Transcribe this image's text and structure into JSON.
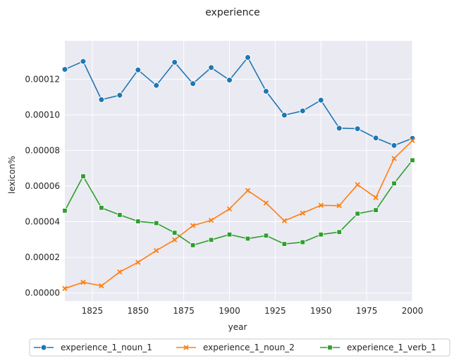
{
  "chart_data": {
    "type": "line",
    "title": "experience",
    "xlabel": "year",
    "ylabel": "lexicon%",
    "xlim": [
      1810,
      2000
    ],
    "ylim": [
      -4.5e-06,
      0.0001415
    ],
    "xticks": [
      1825,
      1850,
      1875,
      1900,
      1925,
      1950,
      1975,
      2000
    ],
    "xtick_labels": [
      "1825",
      "1850",
      "1875",
      "1900",
      "1925",
      "1950",
      "1975",
      "2000"
    ],
    "yticks": [
      0,
      2e-05,
      4e-05,
      6e-05,
      8e-05,
      0.0001,
      0.00012
    ],
    "ytick_labels": [
      "0.00000",
      "0.00002",
      "0.00004",
      "0.00006",
      "0.00008",
      "0.00010",
      "0.00012"
    ],
    "grid": true,
    "legend_position": "bottom-center",
    "x": [
      1810,
      1820,
      1830,
      1840,
      1850,
      1860,
      1870,
      1880,
      1890,
      1900,
      1910,
      1920,
      1930,
      1940,
      1950,
      1960,
      1970,
      1980,
      1990,
      2000
    ],
    "series": [
      {
        "name": "experience_1_noun_1",
        "color": "#1f77b4",
        "marker": "circle",
        "values": [
          0.0001255,
          0.00013,
          0.0001085,
          0.000111,
          0.0001252,
          0.0001165,
          0.0001295,
          0.0001175,
          0.0001265,
          0.0001195,
          0.0001322,
          0.0001132,
          9.98e-05,
          0.0001022,
          0.0001082,
          9.25e-05,
          9.22e-05,
          8.7e-05,
          8.28e-05,
          8.68e-05
        ]
      },
      {
        "name": "experience_1_noun_2",
        "color": "#ff7f0e",
        "marker": "x",
        "values": [
          2.5e-06,
          6e-06,
          4e-06,
          1.18e-05,
          1.72e-05,
          2.38e-05,
          2.98e-05,
          3.78e-05,
          4.08e-05,
          4.72e-05,
          5.75e-05,
          5.05e-05,
          4.05e-05,
          4.48e-05,
          4.92e-05,
          4.9e-05,
          6.08e-05,
          5.35e-05,
          7.55e-05,
          8.55e-05
        ]
      },
      {
        "name": "experience_1_verb_1",
        "color": "#2ca02c",
        "marker": "square",
        "values": [
          4.62e-05,
          6.55e-05,
          4.78e-05,
          4.38e-05,
          4.02e-05,
          3.92e-05,
          3.38e-05,
          2.68e-05,
          2.98e-05,
          3.28e-05,
          3.05e-05,
          3.22e-05,
          2.75e-05,
          2.85e-05,
          3.28e-05,
          3.42e-05,
          4.45e-05,
          4.65e-05,
          6.15e-05,
          7.45e-05
        ]
      }
    ]
  }
}
